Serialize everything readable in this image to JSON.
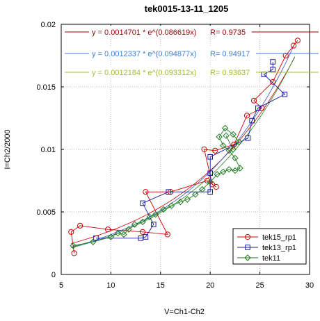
{
  "chart_data": {
    "type": "scatter",
    "title": "tek0015-13-11_1205",
    "xlabel": "V=Ch1-Ch2",
    "ylabel": "I=Ch2/2000",
    "xlim": [
      5,
      30
    ],
    "ylim": [
      0,
      0.02
    ],
    "xticks": [
      "5",
      "10",
      "15",
      "20",
      "25",
      "30"
    ],
    "yticks": [
      "0",
      "0.005",
      "0.01",
      "0.015",
      "0.02"
    ],
    "grid": true,
    "legend_position": "bottom-right",
    "fits": [
      {
        "formula": "y = 0.0014701 * e^(0.086619x)",
        "r": "R= 0.9735",
        "a": 0.0014701,
        "b": 0.086619,
        "color": "#990000"
      },
      {
        "formula": "y = 0.0012337 * e^(0.094877x)",
        "r": "R= 0.94917",
        "a": 0.0012337,
        "b": 0.094877,
        "color": "#3a7fd5"
      },
      {
        "formula": "y = 0.0012184 * e^(0.093312x)",
        "r": "R= 0.93637",
        "a": 0.0012184,
        "b": 0.093312,
        "color": "#9fbf2a"
      }
    ],
    "series": [
      {
        "name": "tek15_rp1",
        "color": "#cc0000",
        "marker": "circle",
        "x": [
          6.3,
          6.0,
          6.9,
          9.7,
          13.2,
          15.7,
          13.5,
          16.0,
          19.7,
          20.6,
          20.2,
          19.4,
          20.5,
          22.4,
          23.7,
          25.2,
          24.4,
          26.3,
          27.6,
          28.4,
          28.8
        ],
        "y": [
          0.0017,
          0.0034,
          0.0039,
          0.0036,
          0.0034,
          0.0032,
          0.0066,
          0.0066,
          0.0075,
          0.007,
          0.0072,
          0.01,
          0.0099,
          0.0104,
          0.0127,
          0.0133,
          0.0139,
          0.0154,
          0.0175,
          0.0183,
          0.0187
        ]
      },
      {
        "name": "tek13_rp1",
        "color": "#1a1aaa",
        "marker": "square",
        "x": [
          8.5,
          13.0,
          13.5,
          14.3,
          13.2,
          15.8,
          20.0,
          20.0,
          20.0,
          23.8,
          24.2,
          24.8,
          27.5,
          25.4,
          26.3,
          26.3
        ],
        "y": [
          0.0029,
          0.0029,
          0.003,
          0.004,
          0.0057,
          0.0066,
          0.0066,
          0.0081,
          0.0094,
          0.0109,
          0.0123,
          0.0133,
          0.0144,
          0.016,
          0.0164,
          0.017
        ]
      },
      {
        "name": "tek11",
        "color": "#1c7a1c",
        "marker": "diamond",
        "x": [
          6.2,
          8.2,
          10.0,
          10.7,
          11.3,
          11.8,
          12.4,
          13.2,
          13.9,
          14.5,
          15.3,
          16.1,
          17.0,
          17.7,
          18.5,
          19.2,
          20.0,
          20.7,
          21.3,
          21.9,
          22.5,
          23.0,
          22.5,
          21.9,
          21.3,
          20.9,
          21.5,
          22.3,
          22.9,
          22.3,
          21.6
        ],
        "y": [
          0.0023,
          0.0026,
          0.003,
          0.0033,
          0.0032,
          0.0036,
          0.004,
          0.0042,
          0.0046,
          0.0048,
          0.0052,
          0.0055,
          0.0058,
          0.006,
          0.0064,
          0.0068,
          0.0074,
          0.008,
          0.0082,
          0.0084,
          0.0083,
          0.0085,
          0.0093,
          0.0099,
          0.0103,
          0.011,
          0.0117,
          0.0112,
          0.0106,
          0.01,
          0.0111
        ]
      }
    ]
  }
}
